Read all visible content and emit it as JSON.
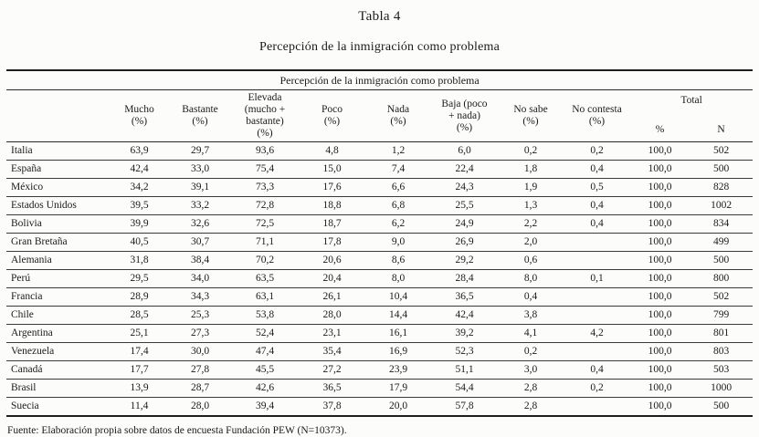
{
  "title": "Tabla 4",
  "subtitle": "Percepción de la inmigración como problema",
  "footer": "Fuente: Elaboración propia sobre datos de encuesta Fundación PEW (N=10373).",
  "table": {
    "span_header": "Percepción de la inmigración como problema",
    "columns": [
      "Mucho\n(%)",
      "Bastante\n(%)",
      "Elevada\n(mucho +\nbastante)\n(%)",
      "Poco\n(%)",
      "Nada\n(%)",
      "Baja (poco\n+ nada)\n(%)",
      "No sabe\n(%)",
      "No contesta\n(%)"
    ],
    "total_label": "Total",
    "total_sub": [
      "%",
      "N"
    ],
    "rows": [
      [
        "Italia",
        "63,9",
        "29,7",
        "93,6",
        "4,8",
        "1,2",
        "6,0",
        "0,2",
        "0,2",
        "100,0",
        "502"
      ],
      [
        "España",
        "42,4",
        "33,0",
        "75,4",
        "15,0",
        "7,4",
        "22,4",
        "1,8",
        "0,4",
        "100,0",
        "500"
      ],
      [
        "México",
        "34,2",
        "39,1",
        "73,3",
        "17,6",
        "6,6",
        "24,3",
        "1,9",
        "0,5",
        "100,0",
        "828"
      ],
      [
        "Estados Unidos",
        "39,5",
        "33,2",
        "72,8",
        "18,8",
        "6,8",
        "25,5",
        "1,3",
        "0,4",
        "100,0",
        "1002"
      ],
      [
        "Bolivia",
        "39,9",
        "32,6",
        "72,5",
        "18,7",
        "6,2",
        "24,9",
        "2,2",
        "0,4",
        "100,0",
        "834"
      ],
      [
        "Gran Bretaña",
        "40,5",
        "30,7",
        "71,1",
        "17,8",
        "9,0",
        "26,9",
        "2,0",
        "",
        "100,0",
        "499"
      ],
      [
        "Alemania",
        "31,8",
        "38,4",
        "70,2",
        "20,6",
        "8,6",
        "29,2",
        "0,6",
        "",
        "100,0",
        "500"
      ],
      [
        "Perú",
        "29,5",
        "34,0",
        "63,5",
        "20,4",
        "8,0",
        "28,4",
        "8,0",
        "0,1",
        "100,0",
        "800"
      ],
      [
        "Francia",
        "28,9",
        "34,3",
        "63,1",
        "26,1",
        "10,4",
        "36,5",
        "0,4",
        "",
        "100,0",
        "502"
      ],
      [
        "Chile",
        "28,5",
        "25,3",
        "53,8",
        "28,0",
        "14,4",
        "42,4",
        "3,8",
        "",
        "100,0",
        "799"
      ],
      [
        "Argentina",
        "25,1",
        "27,3",
        "52,4",
        "23,1",
        "16,1",
        "39,2",
        "4,1",
        "4,2",
        "100,0",
        "801"
      ],
      [
        "Venezuela",
        "17,4",
        "30,0",
        "47,4",
        "35,4",
        "16,9",
        "52,3",
        "0,2",
        "",
        "100,0",
        "803"
      ],
      [
        "Canadá",
        "17,7",
        "27,8",
        "45,5",
        "27,2",
        "23,9",
        "51,1",
        "3,0",
        "0,4",
        "100,0",
        "503"
      ],
      [
        "Brasil",
        "13,9",
        "28,7",
        "42,6",
        "36,5",
        "17,9",
        "54,4",
        "2,8",
        "0,2",
        "100,0",
        "1000"
      ],
      [
        "Suecia",
        "11,4",
        "28,0",
        "39,4",
        "37,8",
        "20,0",
        "57,8",
        "2,8",
        "",
        "100,0",
        "500"
      ]
    ]
  }
}
